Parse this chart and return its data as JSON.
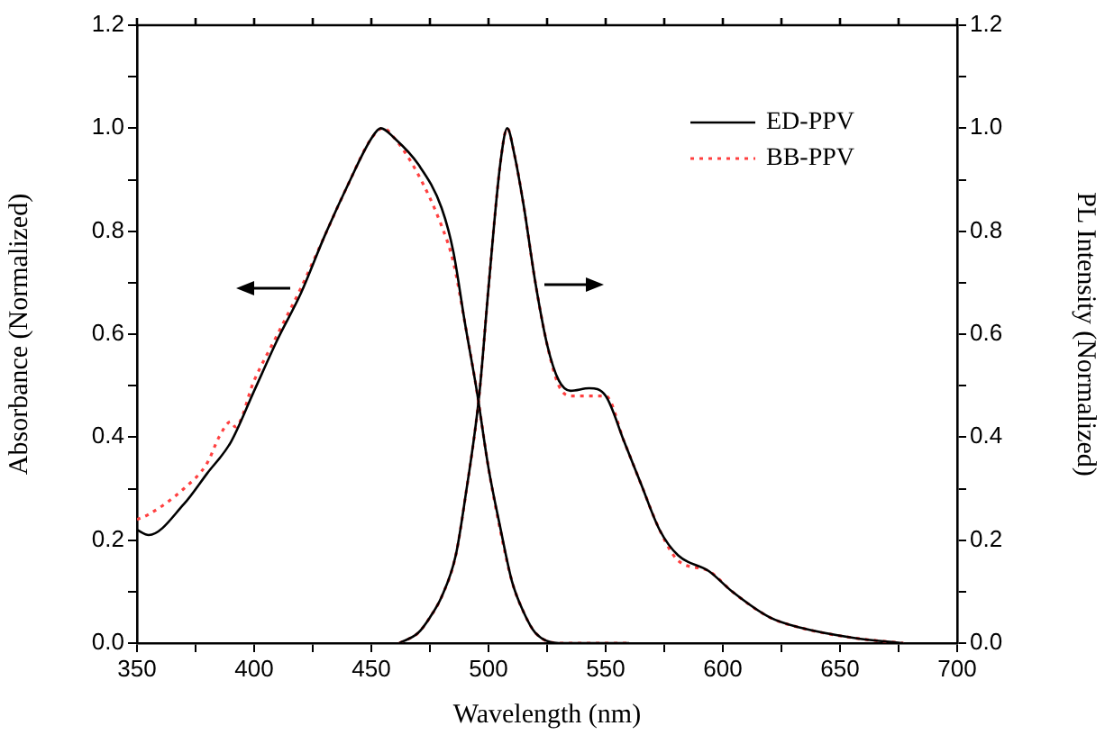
{
  "chart_data": {
    "type": "line",
    "xlabel": "Wavelength (nm)",
    "ylabel": "Absorbance (Normalized)",
    "y2label": "PL Intensity (Normalized)",
    "xlim": [
      350,
      700
    ],
    "xticks": [
      350,
      {
        "value": 375,
        "label": null
      },
      400,
      {
        "value": 425,
        "label": null
      },
      450,
      {
        "value": 475,
        "label": null
      },
      500,
      {
        "value": 525,
        "label": null
      },
      550,
      {
        "value": 575,
        "label": null
      },
      600,
      {
        "value": 625,
        "label": null
      },
      650,
      {
        "value": 675,
        "label": null
      },
      700
    ],
    "ylim": [
      0,
      1.2
    ],
    "yticks": [
      {
        "value": 0,
        "label": "0.0"
      },
      {
        "value": 0.1,
        "label": null
      },
      0.2,
      {
        "value": 0.3,
        "label": null
      },
      0.4,
      {
        "value": 0.5,
        "label": null
      },
      0.6,
      {
        "value": 0.7,
        "label": null
      },
      0.8,
      {
        "value": 0.9,
        "label": null
      },
      {
        "value": 1,
        "label": "1.0"
      },
      {
        "value": 1.1,
        "label": null
      },
      1.2
    ],
    "y2lim": [
      0,
      1.2
    ],
    "y2ticks": [
      {
        "value": 0,
        "label": "0.0"
      },
      {
        "value": 0.1,
        "label": null
      },
      0.2,
      {
        "value": 0.3,
        "label": null
      },
      0.4,
      {
        "value": 0.5,
        "label": null
      },
      0.6,
      {
        "value": 0.7,
        "label": null
      },
      0.8,
      {
        "value": 0.9,
        "label": null
      },
      {
        "value": 1,
        "label": "1.0"
      },
      {
        "value": 1.1,
        "label": null
      },
      1.2
    ],
    "grid": false,
    "legend": "top right",
    "marker": "none",
    "series": [
      {
        "name": "ED-PPV",
        "color": "#000000",
        "line_style": "solid",
        "x": [
          350,
          355,
          370,
          380,
          390,
          400,
          410,
          420,
          430,
          440,
          450,
          454,
          460,
          470,
          480,
          485,
          490,
          495,
          500,
          505,
          510,
          515,
          520,
          530,
          560
        ],
        "values": [
          0.22,
          0.21,
          0.27,
          0.33,
          0.39,
          0.49,
          0.59,
          0.68,
          0.79,
          0.89,
          0.98,
          1.0,
          0.98,
          0.93,
          0.845,
          0.76,
          0.62,
          0.49,
          0.34,
          0.225,
          0.12,
          0.06,
          0.02,
          0.0,
          0.0
        ]
      },
      {
        "name": "BB-PPV",
        "color": "#ff4040",
        "line_style": "dotted",
        "x": [
          350,
          355,
          370,
          380,
          385,
          390,
          392,
          400,
          410,
          420,
          430,
          440,
          450,
          455,
          460,
          470,
          480,
          485,
          490,
          495,
          500,
          505,
          510,
          515,
          520,
          530,
          560
        ],
        "values": [
          0.24,
          0.25,
          0.3,
          0.35,
          0.4,
          0.43,
          0.42,
          0.51,
          0.6,
          0.69,
          0.79,
          0.89,
          0.98,
          1.0,
          0.98,
          0.91,
          0.81,
          0.74,
          0.62,
          0.49,
          0.34,
          0.22,
          0.12,
          0.06,
          0.02,
          0.0,
          0.0
        ]
      },
      {
        "color": "#000000",
        "line_style": "solid",
        "axis": "y2",
        "x": [
          462,
          470,
          475,
          480,
          486,
          490,
          496,
          500,
          505,
          508,
          511,
          515,
          520,
          525,
          530,
          535,
          543,
          550,
          558,
          565,
          573,
          581,
          594,
          604,
          620,
          633,
          656,
          677
        ],
        "values": [
          0.0,
          0.02,
          0.05,
          0.09,
          0.17,
          0.28,
          0.48,
          0.69,
          0.93,
          1.0,
          0.95,
          0.85,
          0.7,
          0.58,
          0.51,
          0.49,
          0.495,
          0.48,
          0.39,
          0.31,
          0.22,
          0.17,
          0.14,
          0.1,
          0.05,
          0.03,
          0.01,
          0.0
        ]
      },
      {
        "color": "#ff4040",
        "line_style": "dotted",
        "axis": "y2",
        "x": [
          462,
          470,
          475,
          480,
          486,
          490,
          496,
          500,
          505,
          508,
          511,
          515,
          520,
          525,
          530,
          535,
          540,
          550,
          558,
          565,
          573,
          581,
          594,
          604,
          620,
          633,
          656,
          677
        ],
        "values": [
          0.0,
          0.02,
          0.05,
          0.09,
          0.17,
          0.28,
          0.48,
          0.69,
          0.93,
          1.0,
          0.95,
          0.85,
          0.7,
          0.58,
          0.5,
          0.48,
          0.48,
          0.48,
          0.39,
          0.31,
          0.22,
          0.16,
          0.14,
          0.1,
          0.05,
          0.03,
          0.01,
          0.0
        ]
      }
    ]
  }
}
